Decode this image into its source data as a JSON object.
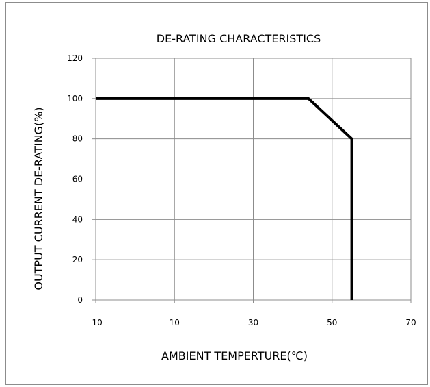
{
  "chart_data": {
    "type": "line",
    "title": "DE-RATING CHARACTERISTICS",
    "xlabel": "AMBIENT TEMPERTURE(℃)",
    "ylabel": "OUTPUT CURRENT DE-RATING(%)",
    "xlim": [
      -10,
      70
    ],
    "ylim": [
      0,
      120
    ],
    "xticks": [
      "-10",
      "10",
      "30",
      "50",
      "70"
    ],
    "yticks": [
      "0",
      "20",
      "40",
      "60",
      "80",
      "100",
      "120"
    ],
    "grid": true,
    "legend": "none",
    "series": [
      {
        "x": [
          -10,
          44,
          55,
          55
        ],
        "y": [
          100,
          100,
          80,
          0
        ],
        "color": "#000000"
      }
    ]
  }
}
